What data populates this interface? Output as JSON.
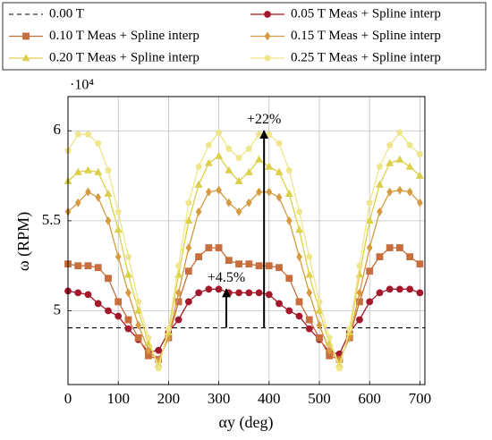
{
  "chart_data": {
    "type": "line",
    "x_label": "αy (deg)",
    "y_label": "ω (RPM)",
    "y_multiplier": "·10⁴",
    "xlim": [
      0,
      710
    ],
    "ylim": [
      4.59,
      6.19
    ],
    "xticks": [
      0,
      100,
      200,
      300,
      400,
      500,
      600,
      700
    ],
    "yticks": [
      5,
      5.5,
      6
    ],
    "grid": true,
    "reference_line": {
      "name": "0.00 T",
      "value": 4.905,
      "color": "#000000",
      "dashed": true
    },
    "x": [
      0,
      20,
      40,
      60,
      80,
      100,
      120,
      140,
      160,
      180,
      200,
      220,
      240,
      260,
      280,
      300,
      320,
      340,
      360,
      380,
      400,
      420,
      440,
      460,
      480,
      500,
      520,
      540,
      560,
      580,
      600,
      620,
      640,
      660,
      680,
      700
    ],
    "series": [
      {
        "name": "0.05 T Meas + Spline interp",
        "color": "#a3192b",
        "marker": "circle",
        "values": [
          5.11,
          5.1,
          5.09,
          5.04,
          5.0,
          4.97,
          4.9,
          4.84,
          4.77,
          4.78,
          4.88,
          4.95,
          5.05,
          5.1,
          5.12,
          5.12,
          5.1,
          5.1,
          5.1,
          5.1,
          5.09,
          5.04,
          5.0,
          4.97,
          4.9,
          4.84,
          4.77,
          4.76,
          4.88,
          4.95,
          5.05,
          5.1,
          5.12,
          5.12,
          5.12,
          5.1
        ]
      },
      {
        "name": "0.10 T Meas + Spline interp",
        "color": "#c86e3c",
        "marker": "square",
        "values": [
          5.26,
          5.25,
          5.25,
          5.24,
          5.18,
          5.05,
          4.95,
          4.85,
          4.75,
          4.73,
          4.85,
          5.05,
          5.22,
          5.3,
          5.35,
          5.35,
          5.28,
          5.26,
          5.26,
          5.25,
          5.25,
          5.24,
          5.18,
          5.05,
          4.95,
          4.85,
          4.75,
          4.73,
          4.85,
          5.05,
          5.22,
          5.3,
          5.35,
          5.35,
          5.3,
          5.26
        ]
      },
      {
        "name": "0.15 T Meas + Spline interp",
        "color": "#d69a40",
        "marker": "diamond",
        "values": [
          5.55,
          5.6,
          5.66,
          5.63,
          5.5,
          5.3,
          5.1,
          4.92,
          4.78,
          4.72,
          4.85,
          5.1,
          5.35,
          5.55,
          5.66,
          5.67,
          5.6,
          5.55,
          5.6,
          5.66,
          5.66,
          5.63,
          5.5,
          5.3,
          5.1,
          4.92,
          4.78,
          4.72,
          4.85,
          5.1,
          5.35,
          5.55,
          5.66,
          5.67,
          5.66,
          5.6
        ]
      },
      {
        "name": "0.20 T Meas + Spline interp",
        "color": "#dcd04a",
        "marker": "triangle",
        "values": [
          5.72,
          5.77,
          5.78,
          5.77,
          5.65,
          5.45,
          5.2,
          5.0,
          4.82,
          4.7,
          4.88,
          5.2,
          5.5,
          5.7,
          5.82,
          5.86,
          5.78,
          5.72,
          5.77,
          5.84,
          5.8,
          5.77,
          5.65,
          5.45,
          5.2,
          5.0,
          4.82,
          4.7,
          4.88,
          5.2,
          5.5,
          5.7,
          5.82,
          5.84,
          5.8,
          5.75
        ]
      },
      {
        "name": "0.25 T Meas + Spline interp",
        "color": "#efe58a",
        "marker": "pentagon",
        "values": [
          5.89,
          5.98,
          5.98,
          5.93,
          5.78,
          5.55,
          5.3,
          5.05,
          4.85,
          4.68,
          4.9,
          5.25,
          5.6,
          5.8,
          5.92,
          5.99,
          5.9,
          5.85,
          5.9,
          5.98,
          5.98,
          5.93,
          5.78,
          5.55,
          5.3,
          5.05,
          4.85,
          4.68,
          4.9,
          5.25,
          5.6,
          5.8,
          5.92,
          5.99,
          5.92,
          5.87
        ]
      }
    ],
    "annotations": [
      {
        "text": "+22%",
        "x": 390,
        "y_from": 4.905,
        "y_to": 6.0
      },
      {
        "text": "+4.5%",
        "x": 315,
        "y_from": 4.905,
        "y_to": 5.12
      }
    ]
  }
}
